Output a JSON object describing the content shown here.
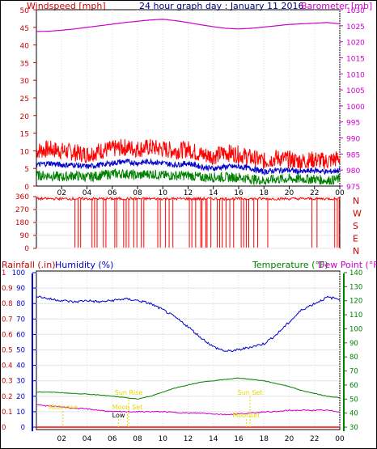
{
  "colors": {
    "wind_avg": "#0000cc",
    "wind_gust": "#ff0000",
    "wind_min": "#008000",
    "barometer": "#cc00cc",
    "direction": "#ff0000",
    "rainfall": "#ff0000",
    "humidity": "#0000cc",
    "temperature": "#008000",
    "dewpoint": "#cc00cc",
    "sun_moon": "#e6d800",
    "axis_blue": "#0000cc",
    "axis_red": "#cc0000",
    "axis_green": "#008000",
    "title_blue": "#000080"
  },
  "chart_data": [
    {
      "type": "line",
      "title": "24 hour graph day : January 11 2016",
      "ylabel_left": "Windspeed [mph]",
      "ylabel_right": "Barometer [mb]",
      "x_ticks": [
        "02",
        "04",
        "06",
        "08",
        "10",
        "12",
        "14",
        "16",
        "18",
        "20",
        "22",
        "00"
      ],
      "ylim_left": [
        0,
        50
      ],
      "yticks_left": [
        0,
        5,
        10,
        15,
        20,
        25,
        30,
        35,
        40,
        45,
        50
      ],
      "ylim_right": [
        975,
        1030
      ],
      "yticks_right": [
        975,
        980,
        985,
        990,
        995,
        1000,
        1005,
        1010,
        1015,
        1020,
        1025,
        1030
      ],
      "hours": [
        0,
        1,
        2,
        3,
        4,
        5,
        6,
        7,
        8,
        9,
        10,
        11,
        12,
        13,
        14,
        15,
        16,
        17,
        18,
        19,
        20,
        21,
        22,
        23,
        24
      ],
      "series": [
        {
          "axis": "right",
          "values": [
            1023.2,
            1023.3,
            1023.6,
            1024.0,
            1024.5,
            1025.0,
            1025.5,
            1026.0,
            1026.4,
            1026.8,
            1027.0,
            1026.6,
            1026.0,
            1025.3,
            1024.7,
            1024.2,
            1024.0,
            1024.2,
            1024.6,
            1025.0,
            1025.4,
            1025.6,
            1025.8,
            1026.0,
            1025.6
          ]
        },
        {
          "axis": "left",
          "values": [
            10,
            10.5,
            10,
            9.5,
            9,
            10,
            10.5,
            11,
            10.5,
            11,
            10.5,
            10,
            10.5,
            9,
            8.5,
            9.5,
            9,
            8,
            7,
            8,
            7.5,
            7,
            7.5,
            7,
            8
          ]
        },
        {
          "axis": "left",
          "values": [
            6,
            6.5,
            6,
            6,
            5.5,
            6,
            6.5,
            7,
            6.5,
            7,
            6.5,
            6,
            6.5,
            5.5,
            5,
            5.5,
            5.5,
            5,
            4,
            4.5,
            4.5,
            4,
            4.5,
            4,
            4.5
          ]
        },
        {
          "axis": "left",
          "values": [
            3,
            3,
            2.5,
            3,
            2.5,
            3,
            3.5,
            3.5,
            3,
            3.5,
            3,
            3,
            3,
            2.5,
            2.5,
            2.5,
            2.5,
            2,
            1.5,
            2,
            2,
            2,
            2,
            1.5,
            2
          ]
        }
      ]
    },
    {
      "type": "line",
      "ylabel_right": [
        "N",
        "W",
        "S",
        "E",
        "N"
      ],
      "ylim": [
        0,
        360
      ],
      "yticks": [
        0,
        90,
        180,
        270,
        360
      ],
      "baseline_deg": 345,
      "drop_hours": [
        3.05,
        3.3,
        3.5,
        4.4,
        4.6,
        4.8,
        5.3,
        5.5,
        6.2,
        6.35,
        6.9,
        7.1,
        7.3,
        7.7,
        7.95,
        8.3,
        8.5,
        9.6,
        9.8,
        10.2,
        10.5,
        10.8,
        12.1,
        12.3,
        12.6,
        13.0,
        13.1,
        13.4,
        13.5,
        13.8,
        14.3,
        14.5,
        14.7,
        15.0,
        15.3,
        15.6,
        16.2,
        16.4,
        16.6,
        16.8,
        17.2,
        17.5,
        18.3,
        21.8,
        22.2,
        23.6,
        23.8,
        23.95
      ]
    },
    {
      "type": "line",
      "ylabel_rain": "Rainfall (.in)",
      "ylabel_humidity": "Humidity (%)",
      "ylabel_temp": "Temperature (°F)",
      "ylabel_dew": "Dew Point (°F)",
      "ylim_rain": [
        0,
        1
      ],
      "yticks_rain": [
        "0",
        "0.1",
        "0.2",
        "0.3",
        "0.4",
        "0.5",
        "0.6",
        "0.7",
        "0.8",
        "0.9",
        "1"
      ],
      "ylim_humidity": [
        0,
        100
      ],
      "yticks_humidity": [
        0,
        10,
        20,
        30,
        40,
        50,
        60,
        70,
        80,
        90,
        100
      ],
      "ylim_temp": [
        30,
        140
      ],
      "yticks_temp": [
        30,
        40,
        50,
        60,
        70,
        80,
        90,
        100,
        110,
        120,
        130,
        140
      ],
      "hours": [
        0,
        1,
        2,
        3,
        4,
        5,
        6,
        7,
        8,
        9,
        10,
        11,
        12,
        13,
        14,
        15,
        16,
        17,
        18,
        19,
        20,
        21,
        22,
        23,
        24
      ],
      "humidity": [
        85,
        83,
        82,
        81,
        82,
        81,
        82,
        83,
        82,
        80,
        76,
        71,
        65,
        58,
        52,
        49,
        50,
        52,
        54,
        60,
        68,
        76,
        80,
        84,
        83
      ],
      "temperature": [
        55,
        55,
        54.5,
        54,
        53.5,
        53,
        52,
        51,
        50,
        52,
        55,
        58,
        60,
        62,
        63,
        64,
        65,
        64,
        63,
        61,
        59,
        56,
        54,
        52,
        51
      ],
      "dewpoint": [
        46,
        45,
        44.5,
        43.5,
        43,
        42,
        41,
        41,
        41,
        41,
        41,
        40.5,
        40,
        40,
        39.5,
        39,
        39.5,
        40,
        41,
        41,
        42,
        42,
        42,
        42,
        41
      ],
      "rainfall": [
        0,
        0,
        0,
        0,
        0,
        0,
        0,
        0,
        0,
        0,
        0,
        0,
        0,
        0,
        0,
        0,
        0,
        0,
        0,
        0,
        0,
        0,
        0,
        0,
        0
      ],
      "annotations": [
        {
          "label": "Sun Rise",
          "hour": 7.3
        },
        {
          "label": "Moonrise",
          "hour": 2.1
        },
        {
          "label": "Low",
          "hour": 6.5
        },
        {
          "label": "Sun Set",
          "hour": 16.9
        },
        {
          "label": "Moon Set",
          "hour": 7.2
        },
        {
          "label": "Moonset",
          "hour": 16.6
        }
      ]
    }
  ]
}
